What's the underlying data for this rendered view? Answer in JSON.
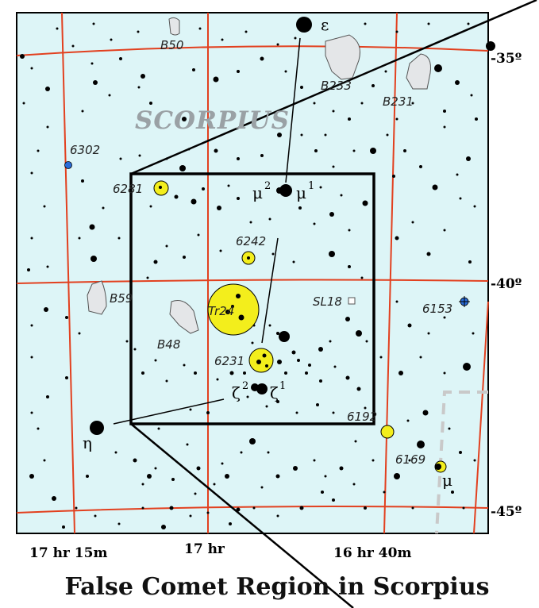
{
  "title": "False Comet Region in Scorpius",
  "constellation": "SCORPIUS",
  "ra_labels": [
    "17 hr 15m",
    "17 hr",
    "16 hr 40m"
  ],
  "dec_labels": [
    "-35º",
    "-40º",
    "-45º"
  ],
  "stars_greek": {
    "epsilon": "ε",
    "mu2": "μ",
    "mu2_sup": "2",
    "mu1": "μ",
    "mu1_sup": "1",
    "zeta2": "ζ",
    "zeta2_sup": "2",
    "zeta1": "ζ",
    "zeta1_sup": "1",
    "eta": "η",
    "mu": "μ"
  },
  "dark_nebulae": [
    "B50",
    "B233",
    "B231",
    "B59",
    "B48"
  ],
  "clusters": [
    "6281",
    "6242",
    "Tr24",
    "6231",
    "6192",
    "6169"
  ],
  "other_objects": {
    "planetary_nebula": "6302",
    "cluster_square": "SL18",
    "globular": "6153"
  },
  "colors": {
    "sky": "#ddf5f7",
    "grid": "#e2401f",
    "cluster": "#f3ee1c",
    "nebula": "#e4e6e8",
    "planetary": "#2a6cd8",
    "boundary": "#c9c9c9"
  }
}
